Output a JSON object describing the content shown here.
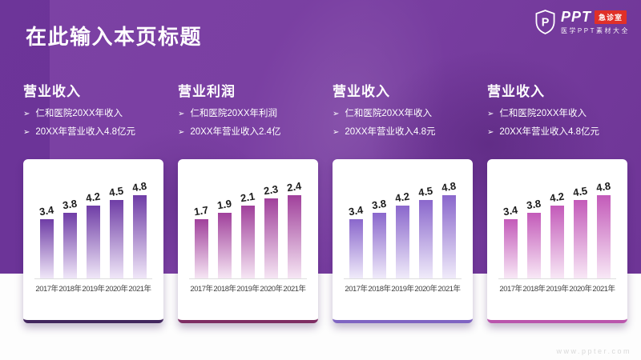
{
  "title": "在此输入本页标题",
  "logo": {
    "shield_letter": "P",
    "brand": "PPT",
    "badge": "急诊室",
    "subtitle": "医学PPT素材大全",
    "badge_color": "#e03028"
  },
  "watermark": "www.ppter.com",
  "colors": {
    "background_purple": "#7a3fa2",
    "card_background": "#ffffff",
    "value_label": "#1b1b1b",
    "year_label": "#3f3f3f"
  },
  "sections": [
    {
      "heading": "营业收入",
      "bullets": [
        "仁和医院20XX年收入",
        "20XX年营业收入4.8亿元"
      ],
      "accent": {
        "bar_top": "#6f3da6",
        "bar_bottom": "#f0e7f8",
        "card_border": "#42265e"
      }
    },
    {
      "heading": "营业利润",
      "bullets": [
        "仁和医院20XX年利润",
        "20XX年营业收入2.4亿"
      ],
      "accent": {
        "bar_top": "#a0409b",
        "bar_bottom": "#f6e6f4",
        "card_border": "#7e2d63"
      }
    },
    {
      "heading": "营业收入",
      "bullets": [
        "仁和医院20XX年收入",
        "20XX年营业收入4.8元"
      ],
      "accent": {
        "bar_top": "#8a67cc",
        "bar_bottom": "#f0ebfa",
        "card_border": "#7f64c2"
      }
    },
    {
      "heading": "营业收入",
      "bullets": [
        "仁和医院20XX年收入",
        "20XX年营业收入4.8亿元"
      ],
      "accent": {
        "bar_top": "#c35ab9",
        "bar_bottom": "#f8e8f6",
        "card_border": "#ba55ac"
      }
    }
  ],
  "chart_data": [
    {
      "type": "bar",
      "title": "营业收入",
      "categories": [
        "2017年",
        "2018年",
        "2019年",
        "2020年",
        "2021年"
      ],
      "values": [
        3.4,
        3.8,
        4.2,
        4.5,
        4.8
      ],
      "ylim": [
        0,
        4.8
      ],
      "data_labels": true,
      "grid": false,
      "legend": "none"
    },
    {
      "type": "bar",
      "title": "营业利润",
      "categories": [
        "2017年",
        "2018年",
        "2019年",
        "2020年",
        "2021年"
      ],
      "values": [
        1.7,
        1.9,
        2.1,
        2.3,
        2.4
      ],
      "ylim": [
        0,
        2.4
      ],
      "data_labels": true,
      "grid": false,
      "legend": "none"
    },
    {
      "type": "bar",
      "title": "营业收入",
      "categories": [
        "2017年",
        "2018年",
        "2019年",
        "2020年",
        "2021年"
      ],
      "values": [
        3.4,
        3.8,
        4.2,
        4.5,
        4.8
      ],
      "ylim": [
        0,
        4.8
      ],
      "data_labels": true,
      "grid": false,
      "legend": "none"
    },
    {
      "type": "bar",
      "title": "营业收入",
      "categories": [
        "2017年",
        "2018年",
        "2019年",
        "2020年",
        "2021年"
      ],
      "values": [
        3.4,
        3.8,
        4.2,
        4.5,
        4.8
      ],
      "ylim": [
        0,
        4.8
      ],
      "data_labels": true,
      "grid": false,
      "legend": "none"
    }
  ]
}
